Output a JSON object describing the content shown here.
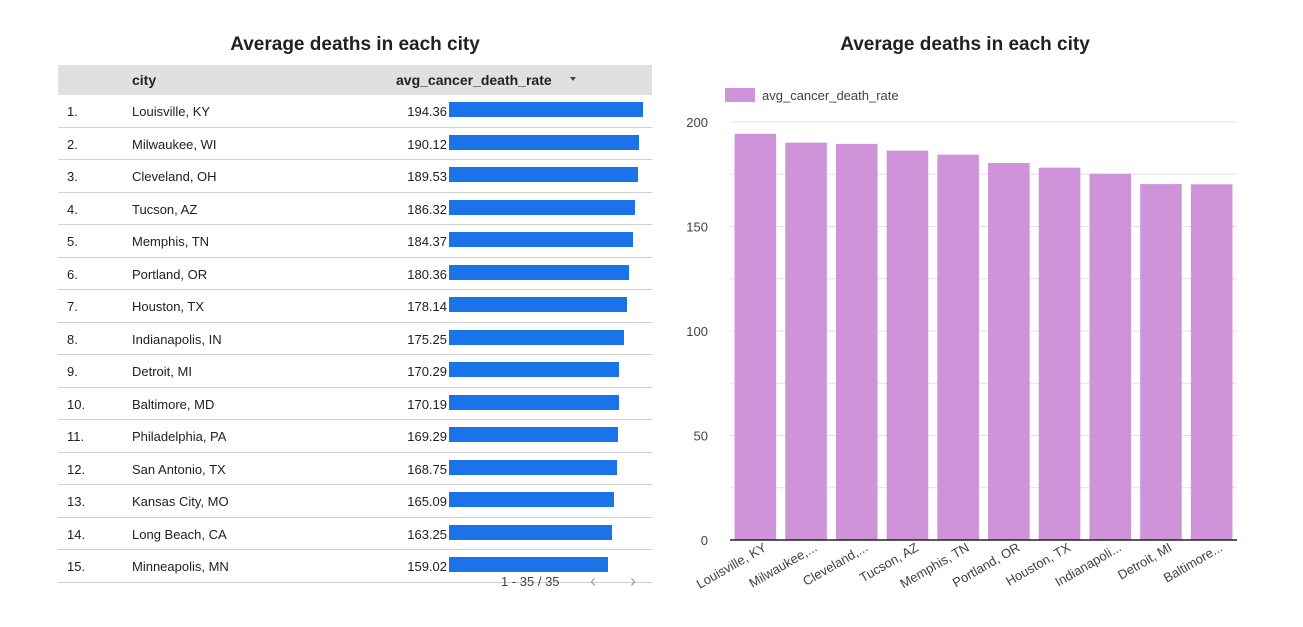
{
  "table": {
    "title": "Average deaths in each city",
    "header": {
      "city": "city",
      "metric": "avg_cancer_death_rate"
    },
    "rows": [
      {
        "index": "1.",
        "city": "Louisville, KY",
        "value": 194.36
      },
      {
        "index": "2.",
        "city": "Milwaukee, WI",
        "value": 190.12
      },
      {
        "index": "3.",
        "city": "Cleveland, OH",
        "value": 189.53
      },
      {
        "index": "4.",
        "city": "Tucson, AZ",
        "value": 186.32
      },
      {
        "index": "5.",
        "city": "Memphis, TN",
        "value": 184.37
      },
      {
        "index": "6.",
        "city": "Portland, OR",
        "value": 180.36
      },
      {
        "index": "7.",
        "city": "Houston, TX",
        "value": 178.14
      },
      {
        "index": "8.",
        "city": "Indianapolis, IN",
        "value": 175.25
      },
      {
        "index": "9.",
        "city": "Detroit, MI",
        "value": 170.29
      },
      {
        "index": "10.",
        "city": "Baltimore, MD",
        "value": 170.19
      },
      {
        "index": "11.",
        "city": "Philadelphia, PA",
        "value": 169.29
      },
      {
        "index": "12.",
        "city": "San Antonio, TX",
        "value": 168.75
      },
      {
        "index": "13.",
        "city": "Kansas City, MO",
        "value": 165.09
      },
      {
        "index": "14.",
        "city": "Long Beach, CA",
        "value": 163.25
      },
      {
        "index": "15.",
        "city": "Minneapolis, MN",
        "value": 159.02
      }
    ],
    "bar_max": 194.36,
    "pagination": {
      "range": "1 - 35 / 35",
      "prev_icon": "chevron-left-icon",
      "next_icon": "chevron-right-icon"
    },
    "colors": {
      "bar": "#1a73e8",
      "header_bg": "#e0e0e0"
    }
  },
  "chart_data": {
    "type": "bar",
    "title": "Average deaths in each city",
    "categories": [
      "Louisville, KY",
      "Milwaukee,...",
      "Cleveland,...",
      "Tucson, AZ",
      "Memphis, TN",
      "Portland, OR",
      "Houston, TX",
      "Indianapoli...",
      "Detroit, MI",
      "Baltimore..."
    ],
    "series": [
      {
        "name": "avg_cancer_death_rate",
        "values": [
          194.36,
          190.12,
          189.53,
          186.32,
          184.37,
          180.36,
          178.14,
          175.25,
          170.29,
          170.19
        ],
        "color": "#ce93d8"
      }
    ],
    "xlabel": "",
    "ylabel": "",
    "ylim": [
      0,
      200
    ],
    "yticks": [
      0,
      50,
      100,
      150,
      200
    ],
    "grid": true,
    "legend": "top-left"
  }
}
